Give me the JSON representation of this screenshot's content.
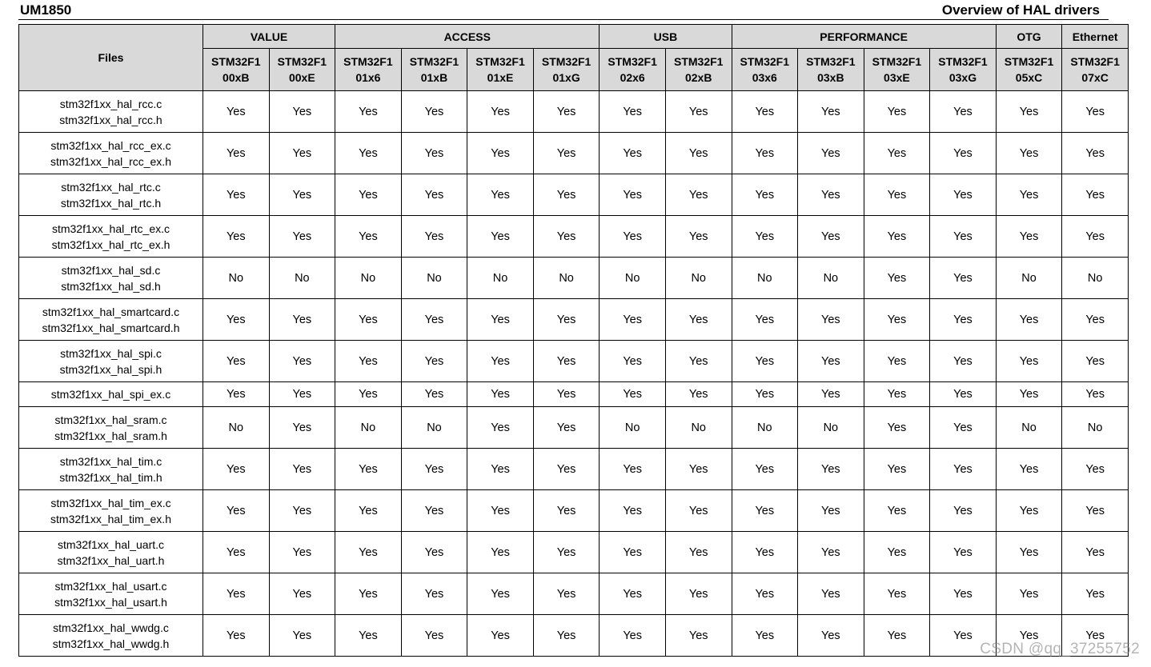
{
  "header": {
    "doc_id": "UM1850",
    "title": "Overview of HAL drivers"
  },
  "table": {
    "files_header": "Files",
    "groups": [
      {
        "label": "VALUE",
        "span": 2
      },
      {
        "label": "ACCESS",
        "span": 4
      },
      {
        "label": "USB",
        "span": 2
      },
      {
        "label": "PERFORMANCE",
        "span": 4
      },
      {
        "label": "OTG",
        "span": 1
      },
      {
        "label": "Ethernet",
        "span": 1
      }
    ],
    "columns": [
      [
        "STM32F1",
        "00xB"
      ],
      [
        "STM32F1",
        "00xE"
      ],
      [
        "STM32F1",
        "01x6"
      ],
      [
        "STM32F1",
        "01xB"
      ],
      [
        "STM32F1",
        "01xE"
      ],
      [
        "STM32F1",
        "01xG"
      ],
      [
        "STM32F1",
        "02x6"
      ],
      [
        "STM32F1",
        "02xB"
      ],
      [
        "STM32F1",
        "03x6"
      ],
      [
        "STM32F1",
        "03xB"
      ],
      [
        "STM32F1",
        "03xE"
      ],
      [
        "STM32F1",
        "03xG"
      ],
      [
        "STM32F1",
        "05xC"
      ],
      [
        "STM32F1",
        "07xC"
      ]
    ],
    "rows": [
      {
        "files": [
          "stm32f1xx_hal_rcc.c",
          "stm32f1xx_hal_rcc.h"
        ],
        "values": [
          "Yes",
          "Yes",
          "Yes",
          "Yes",
          "Yes",
          "Yes",
          "Yes",
          "Yes",
          "Yes",
          "Yes",
          "Yes",
          "Yes",
          "Yes",
          "Yes"
        ]
      },
      {
        "files": [
          "stm32f1xx_hal_rcc_ex.c",
          "stm32f1xx_hal_rcc_ex.h"
        ],
        "values": [
          "Yes",
          "Yes",
          "Yes",
          "Yes",
          "Yes",
          "Yes",
          "Yes",
          "Yes",
          "Yes",
          "Yes",
          "Yes",
          "Yes",
          "Yes",
          "Yes"
        ]
      },
      {
        "files": [
          "stm32f1xx_hal_rtc.c",
          "stm32f1xx_hal_rtc.h"
        ],
        "values": [
          "Yes",
          "Yes",
          "Yes",
          "Yes",
          "Yes",
          "Yes",
          "Yes",
          "Yes",
          "Yes",
          "Yes",
          "Yes",
          "Yes",
          "Yes",
          "Yes"
        ]
      },
      {
        "files": [
          "stm32f1xx_hal_rtc_ex.c",
          "stm32f1xx_hal_rtc_ex.h"
        ],
        "values": [
          "Yes",
          "Yes",
          "Yes",
          "Yes",
          "Yes",
          "Yes",
          "Yes",
          "Yes",
          "Yes",
          "Yes",
          "Yes",
          "Yes",
          "Yes",
          "Yes"
        ]
      },
      {
        "files": [
          "stm32f1xx_hal_sd.c",
          "stm32f1xx_hal_sd.h"
        ],
        "values": [
          "No",
          "No",
          "No",
          "No",
          "No",
          "No",
          "No",
          "No",
          "No",
          "No",
          "Yes",
          "Yes",
          "No",
          "No"
        ]
      },
      {
        "files": [
          "stm32f1xx_hal_smartcard.c",
          "stm32f1xx_hal_smartcard.h"
        ],
        "values": [
          "Yes",
          "Yes",
          "Yes",
          "Yes",
          "Yes",
          "Yes",
          "Yes",
          "Yes",
          "Yes",
          "Yes",
          "Yes",
          "Yes",
          "Yes",
          "Yes"
        ]
      },
      {
        "files": [
          "stm32f1xx_hal_spi.c",
          "stm32f1xx_hal_spi.h"
        ],
        "values": [
          "Yes",
          "Yes",
          "Yes",
          "Yes",
          "Yes",
          "Yes",
          "Yes",
          "Yes",
          "Yes",
          "Yes",
          "Yes",
          "Yes",
          "Yes",
          "Yes"
        ]
      },
      {
        "files": [
          "stm32f1xx_hal_spi_ex.c"
        ],
        "values": [
          "Yes",
          "Yes",
          "Yes",
          "Yes",
          "Yes",
          "Yes",
          "Yes",
          "Yes",
          "Yes",
          "Yes",
          "Yes",
          "Yes",
          "Yes",
          "Yes"
        ]
      },
      {
        "files": [
          "stm32f1xx_hal_sram.c",
          "stm32f1xx_hal_sram.h"
        ],
        "values": [
          "No",
          "Yes",
          "No",
          "No",
          "Yes",
          "Yes",
          "No",
          "No",
          "No",
          "No",
          "Yes",
          "Yes",
          "No",
          "No"
        ]
      },
      {
        "files": [
          "stm32f1xx_hal_tim.c",
          "stm32f1xx_hal_tim.h"
        ],
        "values": [
          "Yes",
          "Yes",
          "Yes",
          "Yes",
          "Yes",
          "Yes",
          "Yes",
          "Yes",
          "Yes",
          "Yes",
          "Yes",
          "Yes",
          "Yes",
          "Yes"
        ]
      },
      {
        "files": [
          "stm32f1xx_hal_tim_ex.c",
          "stm32f1xx_hal_tim_ex.h"
        ],
        "values": [
          "Yes",
          "Yes",
          "Yes",
          "Yes",
          "Yes",
          "Yes",
          "Yes",
          "Yes",
          "Yes",
          "Yes",
          "Yes",
          "Yes",
          "Yes",
          "Yes"
        ]
      },
      {
        "files": [
          "stm32f1xx_hal_uart.c",
          "stm32f1xx_hal_uart.h"
        ],
        "values": [
          "Yes",
          "Yes",
          "Yes",
          "Yes",
          "Yes",
          "Yes",
          "Yes",
          "Yes",
          "Yes",
          "Yes",
          "Yes",
          "Yes",
          "Yes",
          "Yes"
        ]
      },
      {
        "files": [
          "stm32f1xx_hal_usart.c",
          "stm32f1xx_hal_usart.h"
        ],
        "values": [
          "Yes",
          "Yes",
          "Yes",
          "Yes",
          "Yes",
          "Yes",
          "Yes",
          "Yes",
          "Yes",
          "Yes",
          "Yes",
          "Yes",
          "Yes",
          "Yes"
        ]
      },
      {
        "files": [
          "stm32f1xx_hal_wwdg.c",
          "stm32f1xx_hal_wwdg.h"
        ],
        "values": [
          "Yes",
          "Yes",
          "Yes",
          "Yes",
          "Yes",
          "Yes",
          "Yes",
          "Yes",
          "Yes",
          "Yes",
          "Yes",
          "Yes",
          "Yes",
          "Yes"
        ]
      }
    ]
  },
  "watermark": "CSDN @qq_37255752",
  "colors": {
    "header_bg": "#d9d9d9",
    "border": "#000000"
  }
}
